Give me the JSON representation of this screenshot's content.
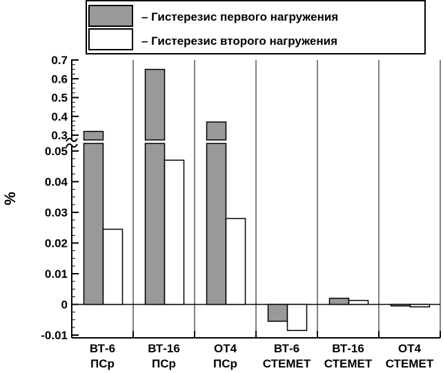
{
  "chart_data": {
    "type": "bar",
    "ylabel": "%",
    "y_axis_break": {
      "lower_range": [
        -0.01,
        0.05
      ],
      "upper_range": [
        0.3,
        0.7
      ]
    },
    "lower_ticks": [
      "-0.01",
      "0",
      "0.01",
      "0.02",
      "0.03",
      "0.04",
      "0.05"
    ],
    "lower_tick_values": [
      -0.01,
      0,
      0.01,
      0.02,
      0.03,
      0.04,
      0.05
    ],
    "upper_ticks": [
      "0.3",
      "0.4",
      "0.5",
      "0.6",
      "0.7"
    ],
    "upper_tick_values": [
      0.3,
      0.4,
      0.5,
      0.6,
      0.7
    ],
    "categories": [
      [
        "ВТ-6",
        "ПСр"
      ],
      [
        "ВТ-16",
        "ПСр"
      ],
      [
        "ОТ4",
        "ПСр"
      ],
      [
        "ВТ-6",
        "СТЕМЕТ"
      ],
      [
        "ВТ-16",
        "СТЕМЕТ"
      ],
      [
        "ОТ4",
        "СТЕМЕТ"
      ]
    ],
    "series": [
      {
        "name": "– Гистерезис первого нагружения",
        "color": "#999999",
        "values": [
          0.32,
          0.65,
          0.37,
          -0.0055,
          0.002,
          -0.0005
        ]
      },
      {
        "name": "– Гистерезис второго нагружения",
        "color": "#ffffff",
        "values": [
          0.0245,
          0.047,
          0.028,
          -0.0085,
          0.0013,
          -0.0008
        ]
      }
    ],
    "legend_position": "top-right",
    "grid": false
  }
}
